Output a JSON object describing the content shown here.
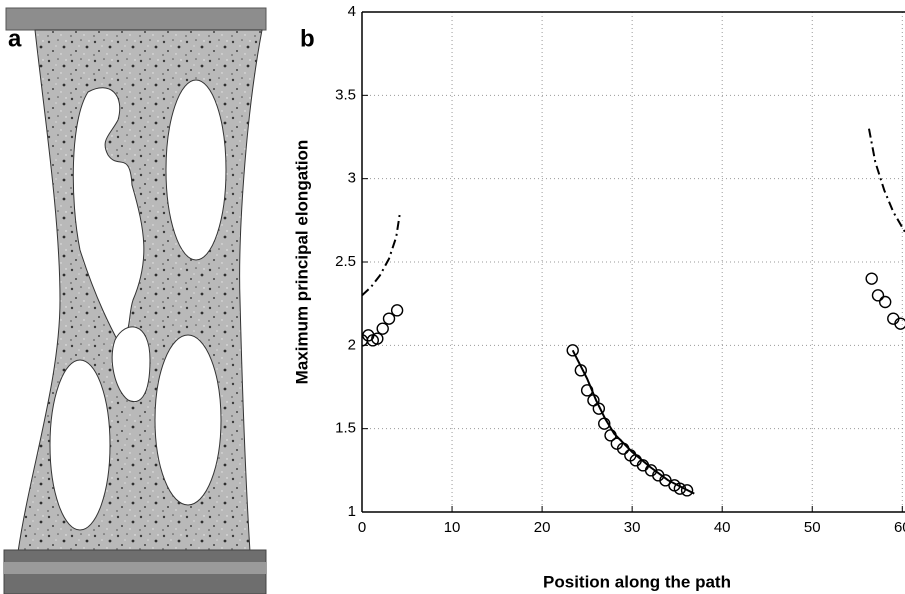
{
  "panel_a": {
    "label": "a"
  },
  "chart_data": {
    "type": "scatter",
    "panel_label": "b",
    "xlabel": "Position along the path",
    "ylabel": "Maximum principal elongation",
    "xlim": [
      0,
      60.3
    ],
    "ylim": [
      1,
      4
    ],
    "xticks": [
      0,
      10,
      20,
      30,
      40,
      50,
      60
    ],
    "yticks": [
      1,
      1.5,
      2,
      2.5,
      3,
      3.5,
      4
    ],
    "grid": true,
    "series": [
      {
        "type": "scatter",
        "color": "#000000",
        "x": [
          0,
          0.7,
          1.2,
          1.7,
          2.3,
          3.0,
          3.9
        ],
        "values": [
          2.03,
          2.06,
          2.03,
          2.04,
          2.1,
          2.16,
          2.21
        ]
      },
      {
        "type": "scatter",
        "color": "#000000",
        "x": [
          23.4,
          24.3,
          25.0,
          25.7,
          26.3,
          26.9,
          27.6,
          28.3,
          29.0,
          29.8,
          30.4,
          31.2,
          32.1,
          32.9,
          33.7,
          34.7,
          35.3,
          36.1
        ],
        "values": [
          1.97,
          1.85,
          1.73,
          1.67,
          1.62,
          1.53,
          1.46,
          1.41,
          1.38,
          1.34,
          1.31,
          1.28,
          1.25,
          1.22,
          1.19,
          1.16,
          1.14,
          1.13
        ]
      },
      {
        "type": "scatter",
        "color": "#000000",
        "x": [
          56.6,
          57.3,
          58.1,
          59.0,
          59.8
        ],
        "values": [
          2.4,
          2.3,
          2.26,
          2.16,
          2.13
        ]
      },
      {
        "type": "line",
        "dash": "dashdot",
        "color": "#000000",
        "x": [
          0,
          1,
          2,
          3,
          3.8,
          4.2
        ],
        "values": [
          2.3,
          2.35,
          2.42,
          2.52,
          2.65,
          2.79
        ]
      },
      {
        "type": "line",
        "dash": "dashdot",
        "color": "#000000",
        "x": [
          56.3,
          57,
          58,
          59,
          60.3
        ],
        "values": [
          3.3,
          3.1,
          2.93,
          2.8,
          2.68
        ]
      },
      {
        "type": "line",
        "dash": "solid",
        "color": "#000000",
        "x": [
          23.4,
          25,
          26,
          27,
          28,
          30,
          32,
          34,
          36.9
        ],
        "values": [
          1.97,
          1.8,
          1.67,
          1.56,
          1.47,
          1.36,
          1.27,
          1.19,
          1.11
        ]
      }
    ]
  }
}
